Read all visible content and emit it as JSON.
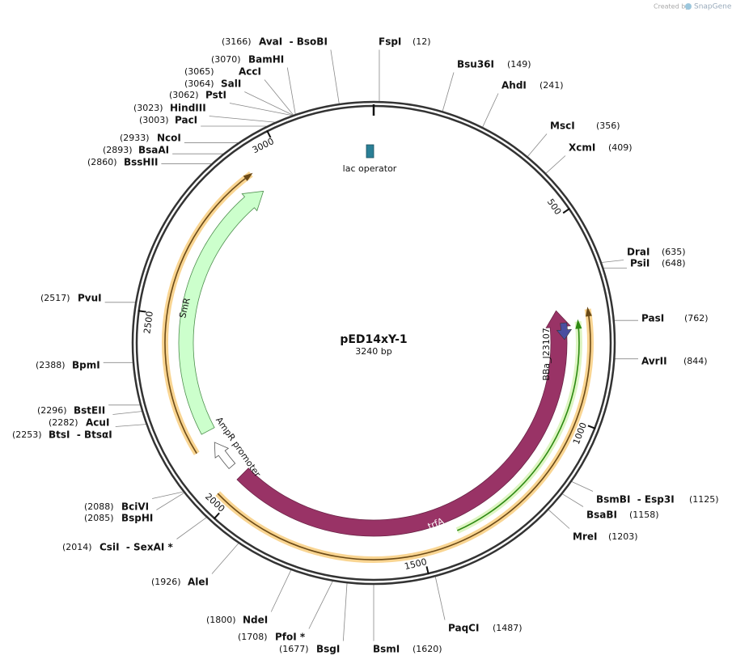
{
  "credit": {
    "prefix": "Created by",
    "brand": "SnapGene"
  },
  "plasmid": {
    "name": "pED14xY-1",
    "length": "3240 bp"
  },
  "ticks": [
    500,
    1000,
    1500,
    2000,
    2500,
    3000
  ],
  "sites": [
    {
      "name": "FspI",
      "position": "(12)"
    },
    {
      "name": "Bsu36I",
      "position": "(149)"
    },
    {
      "name": "AhdI",
      "position": "(241)"
    },
    {
      "name": "MscI",
      "position": "(356)"
    },
    {
      "name": "XcmI",
      "position": "(409)"
    },
    {
      "name": "DraI",
      "position": "(635)"
    },
    {
      "name": "PsiI",
      "position": "(648)"
    },
    {
      "name": "PasI",
      "position": "(762)"
    },
    {
      "name": "AvrII",
      "position": "(844)"
    },
    {
      "name": "BsmBI  - Esp3I",
      "position": "(1125)"
    },
    {
      "name": "BsaBI",
      "position": "(1158)"
    },
    {
      "name": "MreI",
      "position": "(1203)"
    },
    {
      "name": "PaqCI",
      "position": "(1487)"
    },
    {
      "name": "BsmI",
      "position": "(1620)"
    },
    {
      "name": "BsgI",
      "position": "(1677)"
    },
    {
      "name": "PfoI *",
      "position": "(1708)"
    },
    {
      "name": "NdeI",
      "position": "(1800)"
    },
    {
      "name": "AleI",
      "position": "(1926)"
    },
    {
      "name": "CsiI  - SexAI *",
      "position": "(2014)"
    },
    {
      "name": "BspHI",
      "position": "(2085)"
    },
    {
      "name": "BciVI",
      "position": "(2088)"
    },
    {
      "name": "BtsI  - BtsαI",
      "position": "(2253)"
    },
    {
      "name": "AcuI",
      "position": "(2282)"
    },
    {
      "name": "BstEII",
      "position": "(2296)"
    },
    {
      "name": "BpmI",
      "position": "(2388)"
    },
    {
      "name": "PvuI",
      "position": "(2517)"
    },
    {
      "name": "BssHII",
      "position": "(2860)"
    },
    {
      "name": "BsaAI",
      "position": "(2893)"
    },
    {
      "name": "NcoI",
      "position": "(2933)"
    },
    {
      "name": "PacI",
      "position": "(3003)"
    },
    {
      "name": "HindIII",
      "position": "(3023)"
    },
    {
      "name": "PstI",
      "position": "(3062)"
    },
    {
      "name": "SalI",
      "position": "(3064)"
    },
    {
      "name": "AccI",
      "position": "(3065)"
    },
    {
      "name": "BamHI",
      "position": "(3070)"
    },
    {
      "name": "AvaI  - BsoBI",
      "position": "(3166)"
    }
  ],
  "features": [
    {
      "name": "lac operator"
    },
    {
      "name": "SmR"
    },
    {
      "name": "AmpR promoter"
    },
    {
      "name": "trfA"
    },
    {
      "name": "BBa_J23107"
    }
  ]
}
